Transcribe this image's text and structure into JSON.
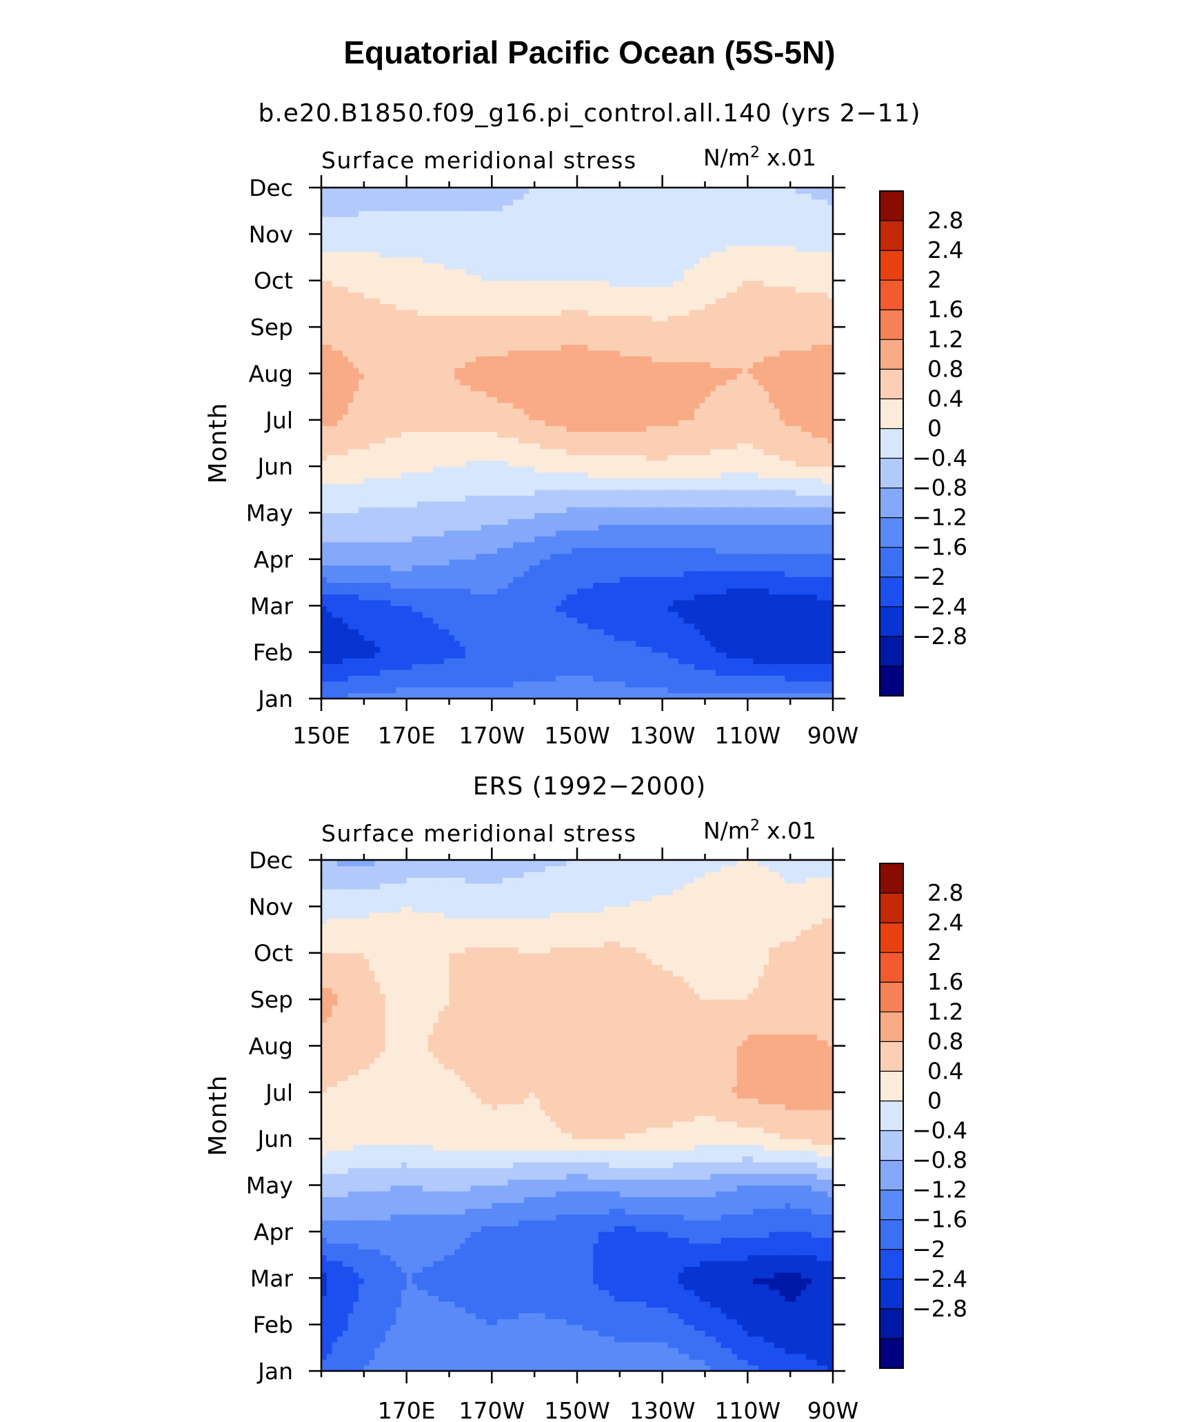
{
  "main_title": "Equatorial Pacific Ocean (5S-5N)",
  "palette": [
    "#000080",
    "#0018a6",
    "#0834d2",
    "#1c4ff0",
    "#3b70f5",
    "#5a8af7",
    "#85a9fa",
    "#b1c9fb",
    "#d6e6fc",
    "#fdebda",
    "#fbcfb4",
    "#f8ab84",
    "#f58155",
    "#f35a2d",
    "#e8400e",
    "#c52a08",
    "#8a0b00"
  ],
  "chart_data": [
    {
      "type": "heatmap",
      "subtitle": "b.e20.B1850.f09_g16.pi_control.all.140 (yrs 2−11)",
      "variable": "Surface meridional stress",
      "units_main": "N/m",
      "units_sup": "2",
      "units_scale": "x.01",
      "ylabel": "Month",
      "y_ticks": [
        "Jan",
        "Feb",
        "Mar",
        "Apr",
        "May",
        "Jun",
        "Jul",
        "Aug",
        "Sep",
        "Oct",
        "Nov",
        "Dec"
      ],
      "x_ticks": [
        "150E",
        "170E",
        "170W",
        "150W",
        "130W",
        "110W",
        "90W"
      ],
      "x_values": [
        150,
        170,
        190,
        210,
        230,
        250,
        270
      ],
      "xlim": [
        150,
        270
      ],
      "colorbar_labels": [
        "2.8",
        "2.4",
        "2",
        "1.6",
        "1.2",
        "0.8",
        "0.4",
        "0",
        "−0.4",
        "−0.8",
        "−1.2",
        "−1.6",
        "−2",
        "−2.4",
        "−2.8"
      ],
      "levels": [
        -3.2,
        -2.8,
        -2.4,
        -2.0,
        -1.6,
        -1.2,
        -0.8,
        -0.4,
        0,
        0.4,
        0.8,
        1.2,
        1.6,
        2.0,
        2.4,
        2.8,
        3.2
      ],
      "lon_grid": [
        150,
        170,
        190,
        210,
        230,
        250,
        270
      ],
      "values": [
        [
          -1.2,
          -1.0,
          -1.1,
          -1.0,
          -1.1,
          -1.1,
          -1.1
        ],
        [
          -2.3,
          -1.9,
          -1.5,
          -1.4,
          -1.6,
          -2.2,
          -2.3
        ],
        [
          -2.0,
          -1.6,
          -1.3,
          -1.7,
          -2.0,
          -2.4,
          -2.1
        ],
        [
          -0.6,
          -0.6,
          -0.9,
          -1.4,
          -1.4,
          -1.3,
          -1.3
        ],
        [
          0.0,
          -0.1,
          -0.2,
          -0.5,
          -0.6,
          -0.6,
          -0.6
        ],
        [
          0.7,
          0.5,
          0.3,
          0.6,
          0.7,
          0.6,
          0.9
        ],
        [
          1.3,
          0.9,
          1.0,
          1.4,
          1.3,
          1.0,
          1.5
        ],
        [
          1.4,
          1.0,
          1.4,
          1.5,
          1.3,
          1.2,
          1.5
        ],
        [
          1.1,
          0.9,
          0.9,
          1.0,
          0.9,
          1.1,
          1.0
        ],
        [
          0.8,
          0.6,
          0.4,
          0.4,
          0.3,
          0.8,
          0.7
        ],
        [
          0.2,
          0.2,
          0.1,
          0.1,
          0.2,
          0.3,
          0.2
        ],
        [
          -0.3,
          -0.2,
          -0.1,
          0.1,
          0.1,
          0.1,
          -0.1
        ]
      ]
    },
    {
      "type": "heatmap",
      "subtitle": "ERS (1992−2000)",
      "variable": "Surface meridional stress",
      "units_main": "N/m",
      "units_sup": "2",
      "units_scale": "x.01",
      "ylabel": "Month",
      "y_ticks": [
        "Jan",
        "Feb",
        "Mar",
        "Apr",
        "May",
        "Jun",
        "Jul",
        "Aug",
        "Sep",
        "Oct",
        "Nov",
        "Dec"
      ],
      "x_ticks": [
        "170E",
        "170W",
        "150W",
        "130W",
        "110W",
        "90W"
      ],
      "x_values": [
        170,
        190,
        210,
        230,
        250,
        270
      ],
      "xlim": [
        150,
        270
      ],
      "colorbar_labels": [
        "2.8",
        "2.4",
        "2",
        "1.6",
        "1.2",
        "0.8",
        "0.4",
        "0",
        "−0.4",
        "−0.8",
        "−1.2",
        "−1.6",
        "−2",
        "−2.4",
        "−2.8"
      ],
      "levels": [
        -3.2,
        -2.8,
        -2.4,
        -2.0,
        -1.6,
        -1.2,
        -0.8,
        -0.4,
        0,
        0.4,
        0.8,
        1.2,
        1.6,
        2.0,
        2.4,
        2.8,
        3.2
      ],
      "lon_grid": [
        150,
        160,
        170,
        180,
        190,
        200,
        210,
        220,
        230,
        240,
        250,
        260,
        270
      ],
      "values": [
        [
          -1.5,
          -1.2,
          -0.9,
          -1.0,
          -0.9,
          -0.8,
          -0.8,
          -0.8,
          -0.9,
          -1.1,
          -1.5,
          -1.8,
          -2.0
        ],
        [
          -1.9,
          -1.4,
          -1.1,
          -1.1,
          -1.2,
          -1.1,
          -1.2,
          -1.4,
          -1.4,
          -1.7,
          -2.1,
          -2.3,
          -2.3
        ],
        [
          -2.1,
          -1.6,
          -1.2,
          -1.3,
          -1.4,
          -1.5,
          -1.5,
          -1.8,
          -1.9,
          -2.3,
          -2.4,
          -2.5,
          -2.3
        ],
        [
          -1.0,
          -1.0,
          -1.0,
          -1.1,
          -1.3,
          -1.4,
          -1.5,
          -1.7,
          -1.6,
          -1.4,
          -1.5,
          -1.6,
          -1.5
        ],
        [
          -0.2,
          -0.3,
          -0.4,
          -0.3,
          -0.4,
          -0.6,
          -0.7,
          -0.6,
          -0.5,
          -0.6,
          -0.8,
          -0.9,
          -0.6
        ],
        [
          0.7,
          0.5,
          0.5,
          0.6,
          0.6,
          0.7,
          0.8,
          0.8,
          0.7,
          0.6,
          0.6,
          0.8,
          1.0
        ],
        [
          0.8,
          0.7,
          0.6,
          0.7,
          0.9,
          0.8,
          1.0,
          1.0,
          1.1,
          1.0,
          1.3,
          1.4,
          1.3
        ],
        [
          1.0,
          0.9,
          0.7,
          0.9,
          0.9,
          1.0,
          1.1,
          1.0,
          1.0,
          0.8,
          1.3,
          1.3,
          1.2
        ],
        [
          1.4,
          0.9,
          0.7,
          0.8,
          0.9,
          1.0,
          1.1,
          1.0,
          1.0,
          0.8,
          0.8,
          0.9,
          1.1
        ],
        [
          0.8,
          0.8,
          0.6,
          0.8,
          0.9,
          0.8,
          0.9,
          0.9,
          0.7,
          0.6,
          0.7,
          0.9,
          1.2
        ],
        [
          0.2,
          0.3,
          0.4,
          0.3,
          0.2,
          0.3,
          0.3,
          0.4,
          0.5,
          0.6,
          0.8,
          0.5,
          0.7
        ],
        [
          -0.4,
          -0.5,
          -0.3,
          -0.2,
          -0.2,
          -0.1,
          0.0,
          0.1,
          0.1,
          0.3,
          0.4,
          0.3,
          0.2
        ]
      ]
    }
  ]
}
